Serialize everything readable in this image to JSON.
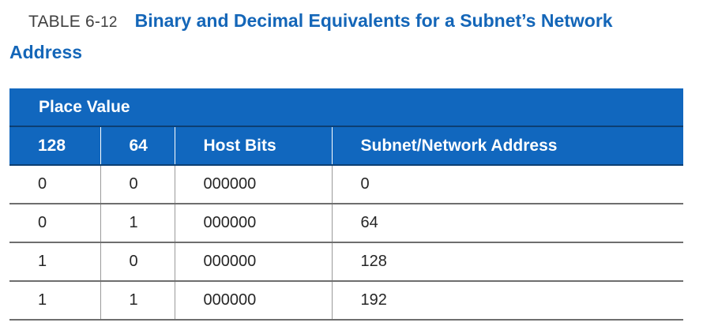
{
  "caption": {
    "table_number": "TABLE 6-",
    "table_number_sub": "12",
    "title": "Binary and Decimal Equivalents for a Subnet’s Network Address"
  },
  "table": {
    "group_header": "Place Value",
    "columns": [
      "128",
      "64",
      "Host Bits",
      "Subnet/Network Address"
    ],
    "rows": [
      [
        "0",
        "0",
        "000000",
        "0"
      ],
      [
        "0",
        "1",
        "000000",
        "64"
      ],
      [
        "1",
        "0",
        "000000",
        "128"
      ],
      [
        "1",
        "1",
        "000000",
        "192"
      ]
    ]
  },
  "colors": {
    "header_background": "#1167be",
    "title_text": "#1466b8"
  }
}
